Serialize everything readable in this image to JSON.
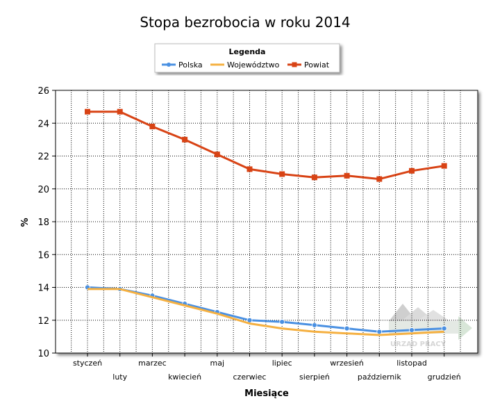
{
  "chart_data": {
    "type": "line",
    "title": "Stopa bezrobocia w roku 2014",
    "xlabel": "Miesiące",
    "ylabel": "%",
    "ylim": [
      10,
      26
    ],
    "yticks": [
      10,
      12,
      14,
      16,
      18,
      20,
      22,
      24,
      26
    ],
    "grid": true,
    "legend": {
      "title": "Legenda",
      "placement": "top-center"
    },
    "categories": [
      "styczeń",
      "luty",
      "marzec",
      "kwiecień",
      "maj",
      "czerwiec",
      "lipiec",
      "sierpień",
      "wrzesień",
      "październik",
      "listopad",
      "grudzień"
    ],
    "series": [
      {
        "name": "Polska",
        "color": "#4a90e2",
        "marker": "circle",
        "values": [
          14.0,
          13.9,
          13.5,
          13.0,
          12.5,
          12.0,
          11.9,
          11.7,
          11.5,
          11.3,
          11.4,
          11.5
        ]
      },
      {
        "name": "Województwo",
        "color": "#f5b041",
        "marker": "none",
        "values": [
          13.9,
          13.9,
          13.4,
          12.9,
          12.4,
          11.8,
          11.5,
          11.3,
          11.2,
          11.1,
          11.2,
          11.3
        ]
      },
      {
        "name": "Powiat",
        "color": "#d84315",
        "marker": "square",
        "values": [
          24.7,
          24.7,
          23.8,
          23.0,
          22.1,
          21.2,
          20.9,
          20.7,
          20.8,
          20.6,
          21.1,
          21.4
        ]
      }
    ]
  },
  "watermark": {
    "text": "URZĄD PRACY"
  }
}
